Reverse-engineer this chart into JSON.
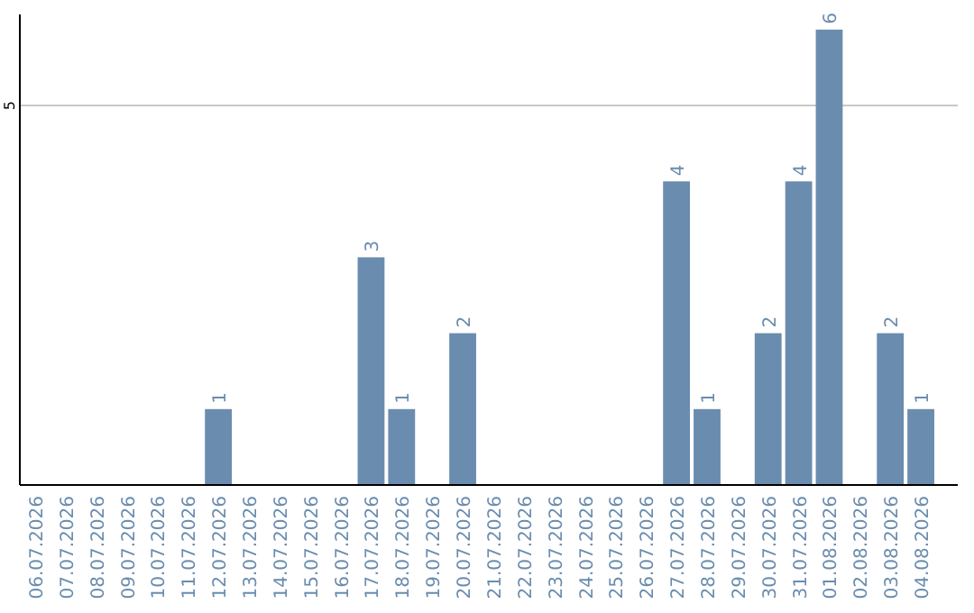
{
  "chart_data": {
    "type": "bar",
    "categories": [
      "06.07.2026",
      "07.07.2026",
      "08.07.2026",
      "09.07.2026",
      "10.07.2026",
      "11.07.2026",
      "12.07.2026",
      "13.07.2026",
      "14.07.2026",
      "15.07.2026",
      "16.07.2026",
      "17.07.2026",
      "18.07.2026",
      "19.07.2026",
      "20.07.2026",
      "21.07.2026",
      "22.07.2026",
      "23.07.2026",
      "24.07.2026",
      "25.07.2026",
      "26.07.2026",
      "27.07.2026",
      "28.07.2026",
      "29.07.2026",
      "30.07.2026",
      "31.07.2026",
      "01.08.2026",
      "02.08.2026",
      "03.08.2026",
      "04.08.2026"
    ],
    "values": [
      0,
      0,
      0,
      0,
      0,
      0,
      1,
      0,
      0,
      0,
      0,
      3,
      1,
      0,
      2,
      0,
      0,
      0,
      0,
      0,
      0,
      4,
      1,
      0,
      2,
      4,
      6,
      0,
      2,
      1
    ],
    "value_labels": [
      null,
      null,
      null,
      null,
      null,
      null,
      "1",
      null,
      null,
      null,
      null,
      "3",
      "1",
      null,
      "2",
      null,
      null,
      null,
      null,
      null,
      null,
      "4",
      "1",
      null,
      "2",
      "4",
      "6",
      null,
      "2",
      "1"
    ],
    "color": "#6a8caf",
    "ylim": [
      0,
      6.2
    ],
    "yticks": [
      5
    ],
    "grid": "y"
  }
}
